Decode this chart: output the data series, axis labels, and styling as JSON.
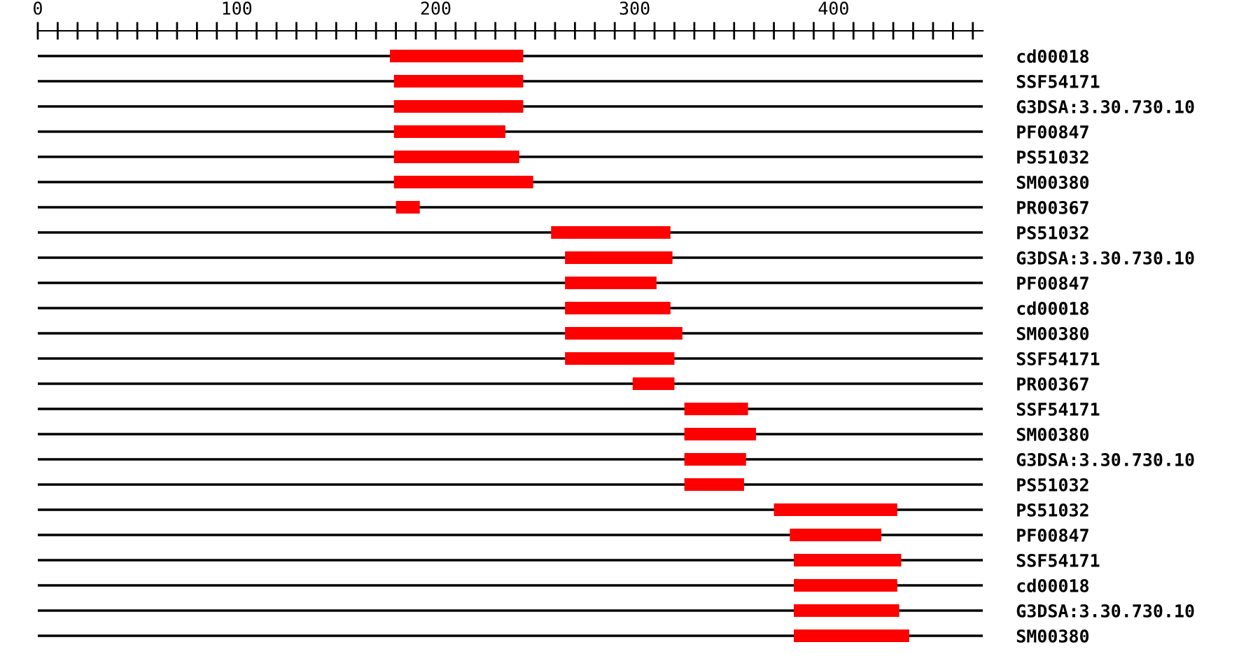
{
  "chart_data": {
    "type": "bar",
    "orientation": "horizontal",
    "categories": [
      "cd00018",
      "SSF54171",
      "G3DSA:3.30.730.10",
      "PF00847",
      "PS51032",
      "SM00380",
      "PR00367",
      "PS51032",
      "G3DSA:3.30.730.10",
      "PF00847",
      "cd00018",
      "SM00380",
      "SSF54171",
      "PR00367",
      "SSF54171",
      "SM00380",
      "G3DSA:3.30.730.10",
      "PS51032",
      "PS51032",
      "PF00847",
      "SSF54171",
      "cd00018",
      "G3DSA:3.30.730.10",
      "SM00380"
    ],
    "base": [
      177,
      179,
      179,
      179,
      179,
      179,
      180,
      258,
      265,
      265,
      265,
      265,
      265,
      299,
      325,
      325,
      325,
      325,
      370,
      378,
      380,
      380,
      380,
      380
    ],
    "values": [
      67,
      65,
      65,
      56,
      63,
      70,
      12,
      60,
      54,
      46,
      53,
      59,
      55,
      21,
      32,
      36,
      31,
      30,
      62,
      46,
      54,
      52,
      53,
      58
    ],
    "color": "#ff0000",
    "xlim": [
      0,
      475
    ],
    "xticks": [
      0,
      {
        "value": 10,
        "label": null
      },
      {
        "value": 20,
        "label": null
      },
      {
        "value": 30,
        "label": null
      },
      {
        "value": 40,
        "label": null
      },
      {
        "value": 50,
        "label": null
      },
      {
        "value": 60,
        "label": null
      },
      {
        "value": 70,
        "label": null
      },
      {
        "value": 80,
        "label": null
      },
      {
        "value": 90,
        "label": null
      },
      100,
      {
        "value": 110,
        "label": null
      },
      {
        "value": 120,
        "label": null
      },
      {
        "value": 130,
        "label": null
      },
      {
        "value": 140,
        "label": null
      },
      {
        "value": 150,
        "label": null
      },
      {
        "value": 160,
        "label": null
      },
      {
        "value": 170,
        "label": null
      },
      {
        "value": 180,
        "label": null
      },
      {
        "value": 190,
        "label": null
      },
      200,
      {
        "value": 210,
        "label": null
      },
      {
        "value": 220,
        "label": null
      },
      {
        "value": 230,
        "label": null
      },
      {
        "value": 240,
        "label": null
      },
      {
        "value": 250,
        "label": null
      },
      {
        "value": 260,
        "label": null
      },
      {
        "value": 270,
        "label": null
      },
      {
        "value": 280,
        "label": null
      },
      {
        "value": 290,
        "label": null
      },
      300,
      {
        "value": 310,
        "label": null
      },
      {
        "value": 320,
        "label": null
      },
      {
        "value": 330,
        "label": null
      },
      {
        "value": 340,
        "label": null
      },
      {
        "value": 350,
        "label": null
      },
      {
        "value": 360,
        "label": null
      },
      {
        "value": 370,
        "label": null
      },
      {
        "value": 380,
        "label": null
      },
      {
        "value": 390,
        "label": null
      },
      400,
      {
        "value": 410,
        "label": null
      },
      {
        "value": 420,
        "label": null
      },
      {
        "value": 430,
        "label": null
      },
      {
        "value": 440,
        "label": null
      },
      {
        "value": 450,
        "label": null
      },
      {
        "value": 460,
        "label": null
      },
      {
        "value": 470,
        "label": null
      }
    ],
    "grid": "y"
  }
}
